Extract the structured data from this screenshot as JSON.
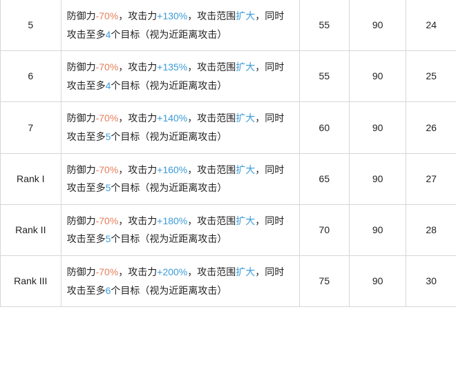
{
  "table": {
    "border_color": "#d6d6d6",
    "text_color": "#222222",
    "neg_color": "#e67e5a",
    "pos_color": "#3a9bd9",
    "link_color": "#3a9bd9",
    "background_color": "#ffffff",
    "font_size": 14,
    "rows": [
      {
        "level": "5",
        "desc": {
          "pre": "防御力",
          "neg": "-70%",
          "mid1": "，攻击力",
          "pos": "+130%",
          "mid2": "，攻击范围",
          "link1": "扩大",
          "mid3": "，同时攻击至多",
          "targets": "4",
          "mid4": "个目标（视为近距离攻击）"
        },
        "c1": "55",
        "c2": "90",
        "c3": "24"
      },
      {
        "level": "6",
        "desc": {
          "pre": "防御力",
          "neg": "-70%",
          "mid1": "，攻击力",
          "pos": "+135%",
          "mid2": "，攻击范围",
          "link1": "扩大",
          "mid3": "，同时攻击至多",
          "targets": "4",
          "mid4": "个目标（视为近距离攻击）"
        },
        "c1": "55",
        "c2": "90",
        "c3": "25"
      },
      {
        "level": "7",
        "desc": {
          "pre": "防御力",
          "neg": "-70%",
          "mid1": "，攻击力",
          "pos": "+140%",
          "mid2": "，攻击范围",
          "link1": "扩大",
          "mid3": "，同时攻击至多",
          "targets": "5",
          "mid4": "个目标（视为近距离攻击）"
        },
        "c1": "60",
        "c2": "90",
        "c3": "26"
      },
      {
        "level": "Rank I",
        "desc": {
          "pre": "防御力",
          "neg": "-70%",
          "mid1": "，攻击力",
          "pos": "+160%",
          "mid2": "，攻击范围",
          "link1": "扩大",
          "mid3": "，同时攻击至多",
          "targets": "5",
          "mid4": "个目标（视为近距离攻击）"
        },
        "c1": "65",
        "c2": "90",
        "c3": "27"
      },
      {
        "level": "Rank II",
        "desc": {
          "pre": "防御力",
          "neg": "-70%",
          "mid1": "，攻击力",
          "pos": "+180%",
          "mid2": "，攻击范围",
          "link1": "扩大",
          "mid3": "，同时攻击至多",
          "targets": "5",
          "mid4": "个目标（视为近距离攻击）"
        },
        "c1": "70",
        "c2": "90",
        "c3": "28"
      },
      {
        "level": "Rank III",
        "desc": {
          "pre": "防御力",
          "neg": "-70%",
          "mid1": "，攻击力",
          "pos": "+200%",
          "mid2": "，攻击范围",
          "link1": "扩大",
          "mid3": "，同时攻击至多",
          "targets": "6",
          "mid4": "个目标（视为近距离攻击）"
        },
        "c1": "75",
        "c2": "90",
        "c3": "30"
      }
    ]
  }
}
